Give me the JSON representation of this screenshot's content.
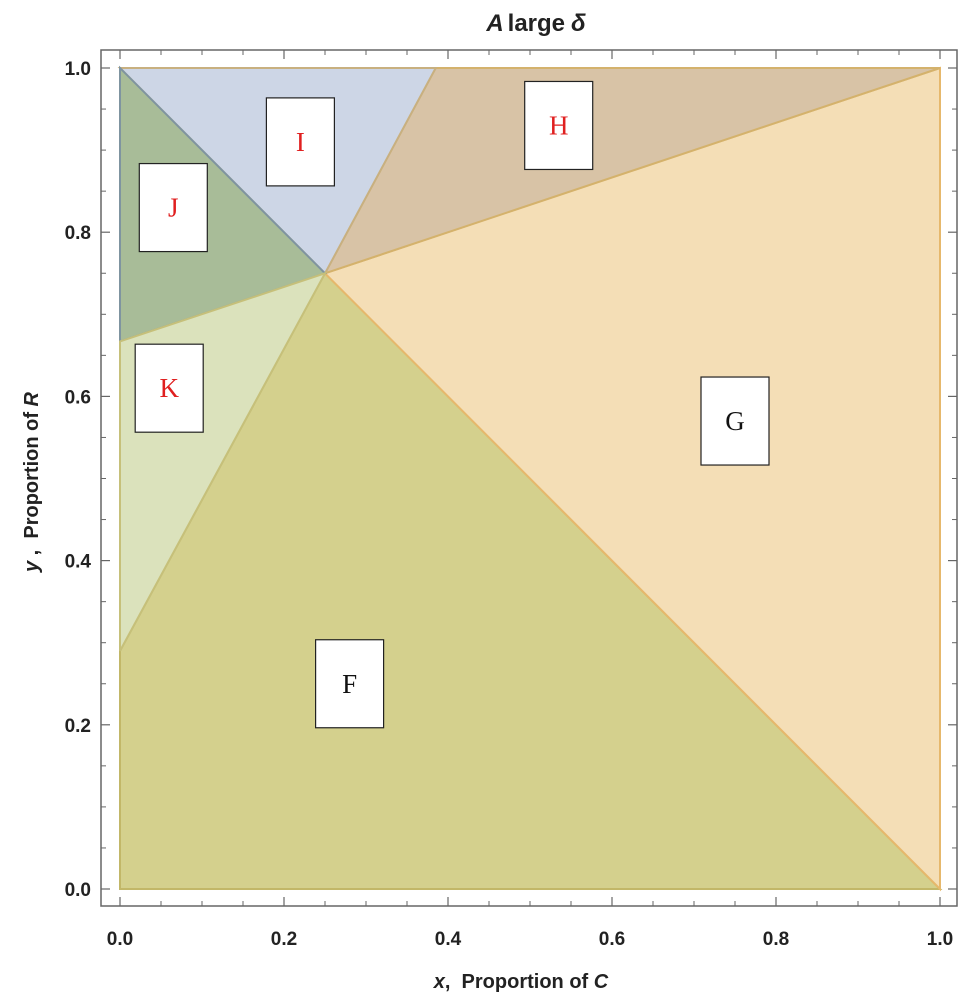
{
  "chart_data": {
    "type": "area",
    "title_prefix": "A",
    "title_rest": "large",
    "title_symbol": "δ",
    "xlabel_var": "x",
    "xlabel_rest": ",  Proportion of ",
    "xlabel_sym": "C",
    "ylabel_var": "y",
    "ylabel_rest": " ,  Proportion of ",
    "ylabel_sym": "R",
    "xlim": [
      0,
      1
    ],
    "ylim": [
      0,
      1
    ],
    "x_ticks": [
      0.0,
      0.2,
      0.4,
      0.6,
      0.8,
      1.0
    ],
    "y_ticks": [
      0.0,
      0.2,
      0.4,
      0.6,
      0.8,
      1.0
    ],
    "x_tick_labels": [
      "0.0",
      "0.2",
      "0.4",
      "0.6",
      "0.8",
      "1.0"
    ],
    "y_tick_labels": [
      "0.0",
      "0.2",
      "0.4",
      "0.6",
      "0.8",
      "1.0"
    ],
    "grid": false,
    "regions": [
      {
        "name": "F",
        "label_color": "#111111",
        "fill": "#d4d08d",
        "stroke": "#c2b768",
        "polygon": [
          [
            0,
            0
          ],
          [
            1,
            0
          ],
          [
            0.25,
            0.75
          ],
          [
            0,
            0.29
          ]
        ],
        "label_at": [
          0.28,
          0.25
        ]
      },
      {
        "name": "G",
        "label_color": "#111111",
        "fill": "#f4deb6",
        "stroke": "#e6b86c",
        "polygon": [
          [
            1,
            0
          ],
          [
            1,
            1
          ],
          [
            0.25,
            0.75
          ]
        ],
        "label_at": [
          0.75,
          0.57
        ]
      },
      {
        "name": "H",
        "label_color": "#e02020",
        "fill": "#d8c3a6",
        "stroke": "#d4b26c",
        "polygon": [
          [
            0.25,
            0.75
          ],
          [
            0.385,
            1
          ],
          [
            1,
            1
          ]
        ],
        "label_at": [
          0.535,
          0.93
        ]
      },
      {
        "name": "I",
        "label_color": "#e02020",
        "fill": "#cdd6e6",
        "stroke": "#c8b080",
        "polygon": [
          [
            0,
            1
          ],
          [
            0.385,
            1
          ],
          [
            0.25,
            0.75
          ]
        ],
        "label_at": [
          0.22,
          0.91
        ]
      },
      {
        "name": "J",
        "label_color": "#e02020",
        "fill": "#a8bc98",
        "stroke": "#7f94a0",
        "polygon": [
          [
            0,
            1
          ],
          [
            0.25,
            0.75
          ],
          [
            0,
            0.667
          ]
        ],
        "label_at": [
          0.065,
          0.83
        ]
      },
      {
        "name": "K",
        "label_color": "#e02020",
        "fill": "#dbe2bc",
        "stroke": "#c6c07a",
        "polygon": [
          [
            0,
            0.667
          ],
          [
            0.25,
            0.75
          ],
          [
            0,
            0.29
          ]
        ],
        "label_at": [
          0.06,
          0.61
        ]
      }
    ]
  }
}
